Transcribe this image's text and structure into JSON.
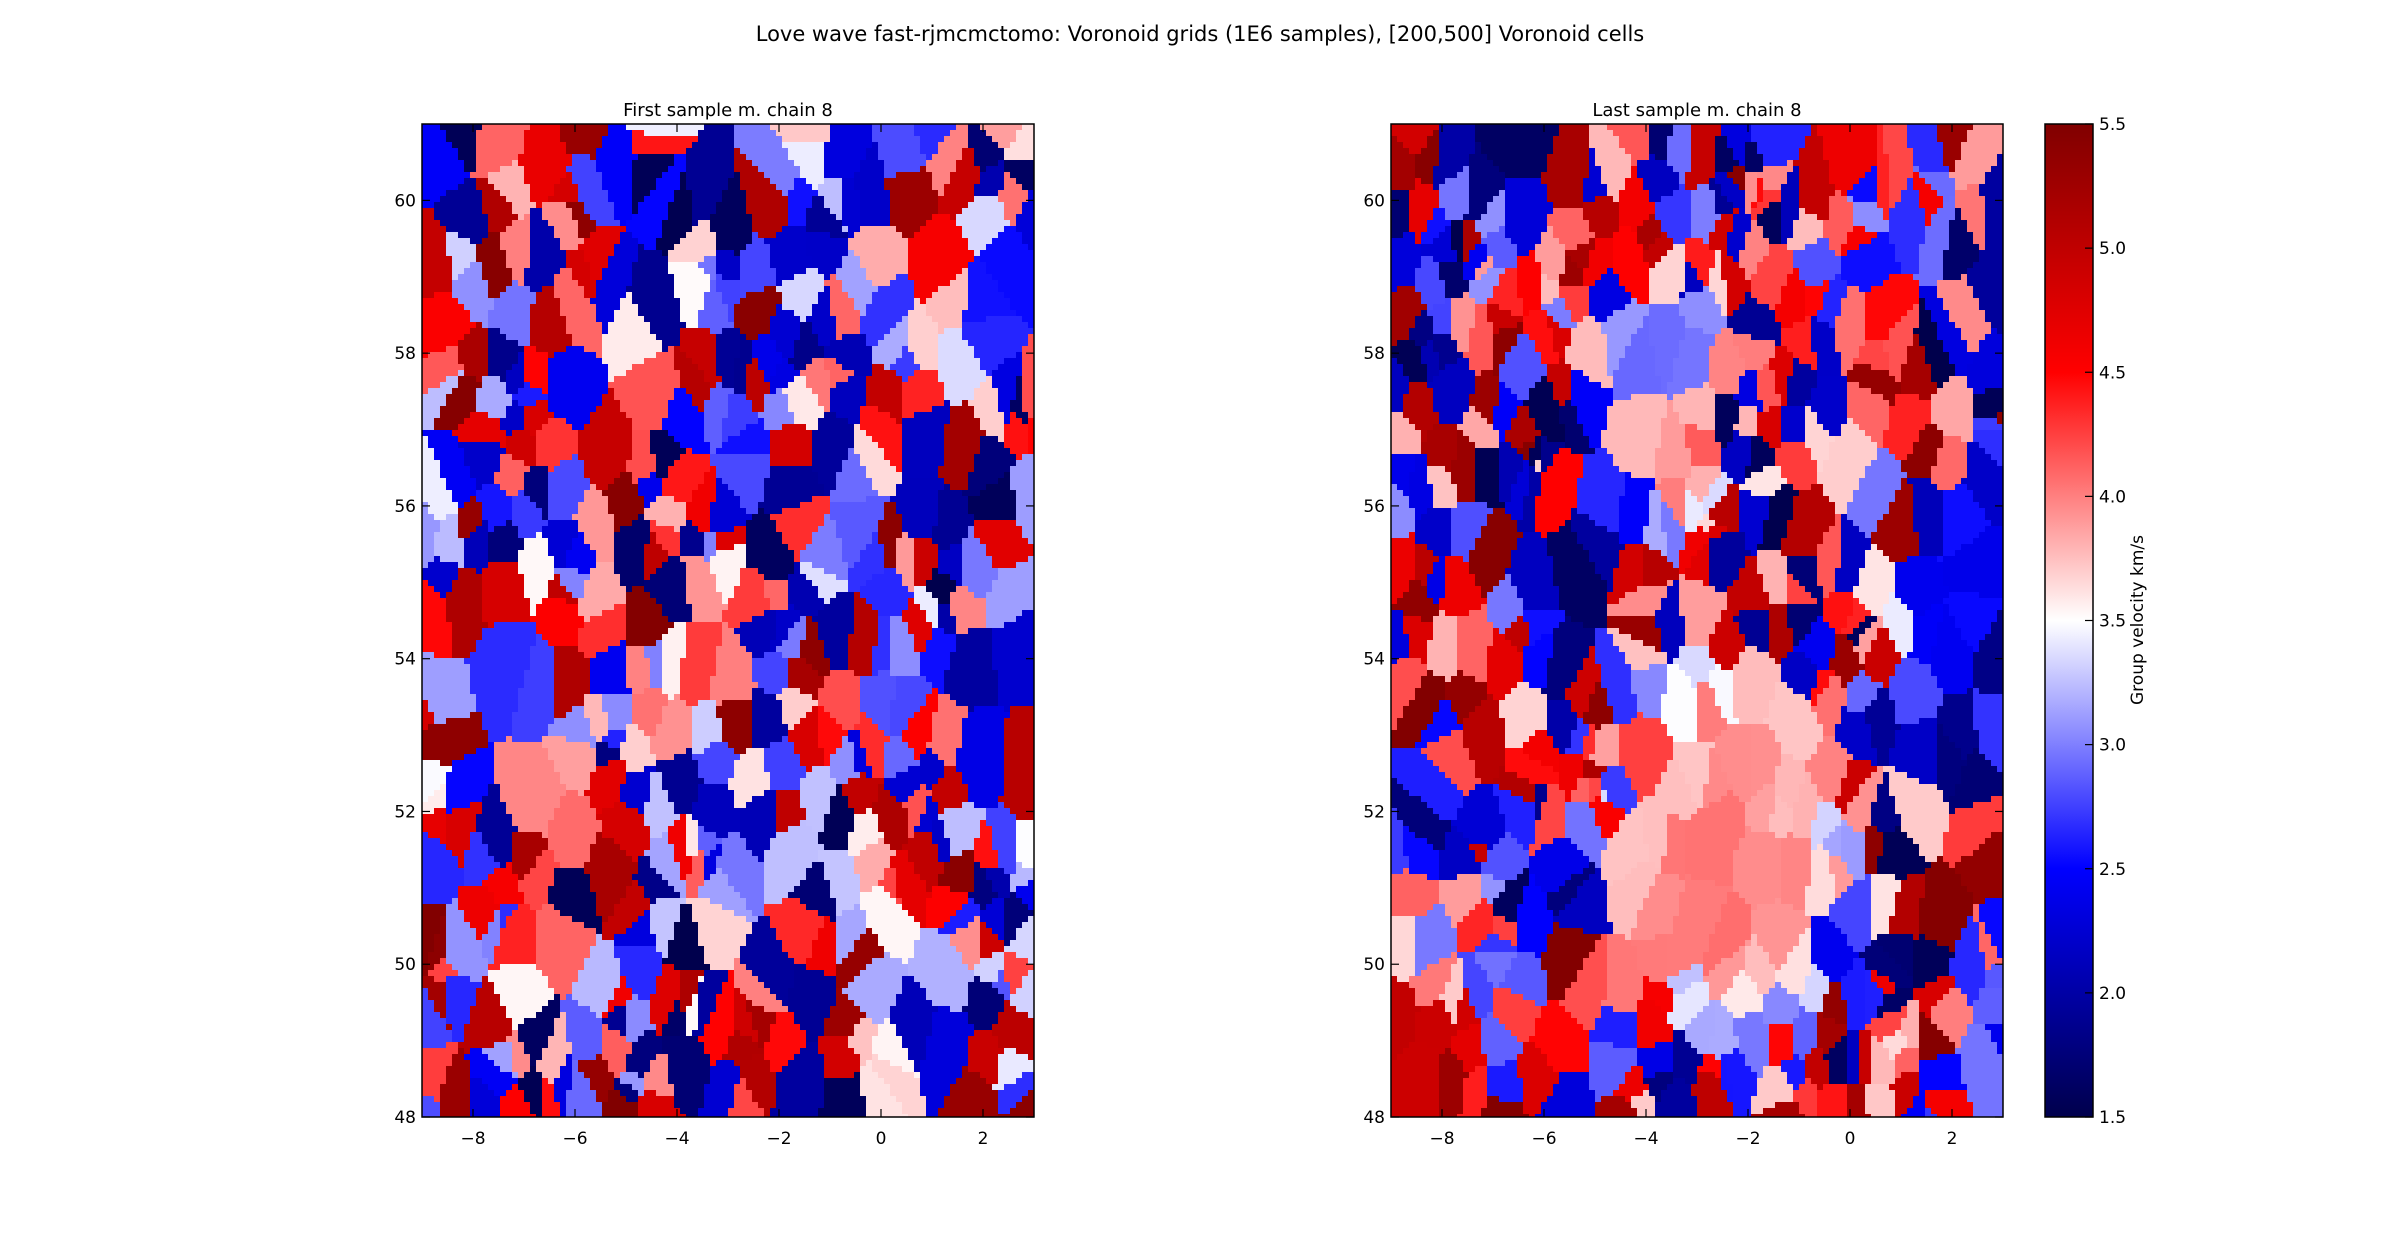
{
  "figure": {
    "suptitle": "Love wave fast-rjmcmctomo: Voronoid grids (1E6 samples), [200,500] Voronoid cells"
  },
  "chart_data": [
    {
      "type": "heatmap",
      "subtype": "voronoi-cells",
      "title": "First sample m. chain 8",
      "xlim": [
        -9,
        3
      ],
      "ylim": [
        48,
        61
      ],
      "xticks": [
        -8,
        -6,
        -4,
        -2,
        0,
        2
      ],
      "yticks": [
        48,
        50,
        52,
        54,
        56,
        58,
        60
      ],
      "xtick_labels": [
        "−8",
        "−6",
        "−4",
        "−2",
        "0",
        "2"
      ],
      "ytick_labels": [
        "48",
        "50",
        "52",
        "54",
        "56",
        "58",
        "60"
      ],
      "cell_count_range": [
        200,
        500
      ],
      "pattern": "random",
      "seed": 7,
      "n_cells": 420
    },
    {
      "type": "heatmap",
      "subtype": "voronoi-cells",
      "title": "Last sample m. chain 8",
      "xlim": [
        -9,
        3
      ],
      "ylim": [
        48,
        61
      ],
      "xticks": [
        -8,
        -6,
        -4,
        -2,
        0,
        2
      ],
      "yticks": [
        48,
        50,
        52,
        54,
        56,
        58,
        60
      ],
      "xtick_labels": [
        "−8",
        "−6",
        "−4",
        "−2",
        "0",
        "2"
      ],
      "ytick_labels": [
        "48",
        "50",
        "52",
        "54",
        "56",
        "58",
        "60"
      ],
      "cell_count_range": [
        200,
        500
      ],
      "pattern": "structured",
      "seed": 23,
      "n_cells": 460,
      "features": [
        {
          "kind": "light-red-anomaly",
          "center": [
            -2.5,
            51.5
          ],
          "radius_x": 3.0,
          "radius_y": 3.0,
          "value": 3.9
        },
        {
          "kind": "light-red-anomaly",
          "center": [
            -3.5,
            56.5
          ],
          "radius_x": 1.2,
          "radius_y": 1.0,
          "value": 4.0
        },
        {
          "kind": "blue-zone",
          "center": [
            2.0,
            55.0
          ],
          "radius_x": 1.3,
          "radius_y": 1.5,
          "value": 2.4
        },
        {
          "kind": "blue-zone",
          "center": [
            -3.5,
            58.0
          ],
          "radius_x": 1.6,
          "radius_y": 1.0,
          "value": 3.0
        }
      ]
    }
  ],
  "colorbar": {
    "label": "Group velocity km/s",
    "min": 1.5,
    "max": 5.5,
    "ticks": [
      1.5,
      2.0,
      2.5,
      3.0,
      3.5,
      4.0,
      4.5,
      5.0,
      5.5
    ],
    "tick_labels": [
      "1.5",
      "2.0",
      "2.5",
      "3.0",
      "3.5",
      "4.0",
      "4.5",
      "5.0",
      "5.5"
    ],
    "colormap": "seismic_r",
    "colors": {
      "low": "#00004c",
      "mid_low": "#0000ff",
      "center": "#ffffff",
      "mid_high": "#ff0000",
      "high": "#800000"
    }
  }
}
